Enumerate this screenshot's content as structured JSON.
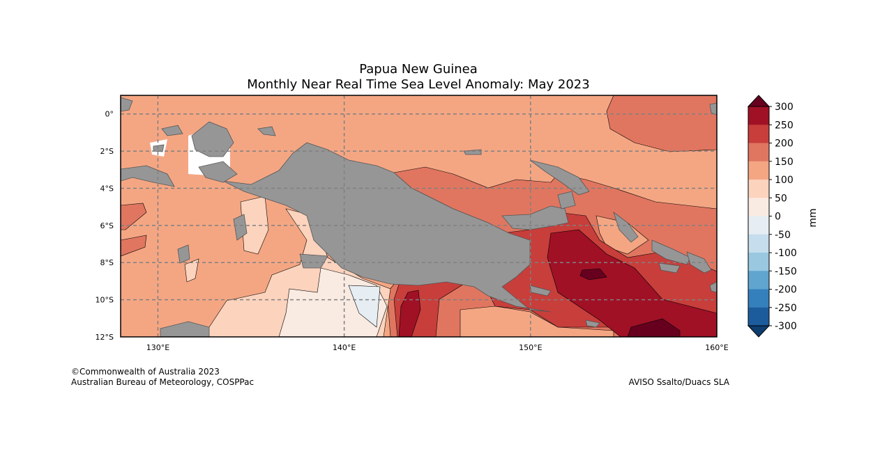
{
  "title": "Papua New Guinea",
  "subtitle": "Monthly Near Real Time Sea Level Anomaly: May 2023",
  "map": {
    "lon_range": [
      128,
      160
    ],
    "lat_range": [
      -12,
      1
    ],
    "lon_ticks": [
      {
        "lon": 130,
        "label": "130°E"
      },
      {
        "lon": 140,
        "label": "140°E"
      },
      {
        "lon": 150,
        "label": "150°E"
      },
      {
        "lon": 160,
        "label": "160°E"
      }
    ],
    "lat_ticks": [
      {
        "lat": 0,
        "label": "0°"
      },
      {
        "lat": -2,
        "label": "2°S"
      },
      {
        "lat": -4,
        "label": "4°S"
      },
      {
        "lat": -6,
        "label": "6°S"
      },
      {
        "lat": -8,
        "label": "8°S"
      },
      {
        "lat": -10,
        "label": "10°S"
      },
      {
        "lat": -12,
        "label": "12°S"
      }
    ],
    "gridlines": true,
    "land_color": "#969696"
  },
  "colorbar": {
    "unit": "mm",
    "ticks": [
      "300",
      "250",
      "200",
      "150",
      "100",
      "50",
      "0",
      "-50",
      "-100",
      "-150",
      "-200",
      "-250",
      "-300"
    ],
    "colors_top_to_bottom": [
      "#a01126",
      "#c83e3b",
      "#e07660",
      "#f4a683",
      "#fcd3bd",
      "#f9eae2",
      "#e6eef3",
      "#c5dded",
      "#99c8e0",
      "#5fa5cf",
      "#3480bc",
      "#1c5c9c"
    ],
    "over_color": "#67001f",
    "under_color": "#0e3d6f"
  },
  "footer": {
    "copyright": "©Commonwealth of Australia 2023",
    "org": "Australian Bureau of Meteorology, COSPPac",
    "source": "AVISO Ssalto/Duacs SLA"
  }
}
